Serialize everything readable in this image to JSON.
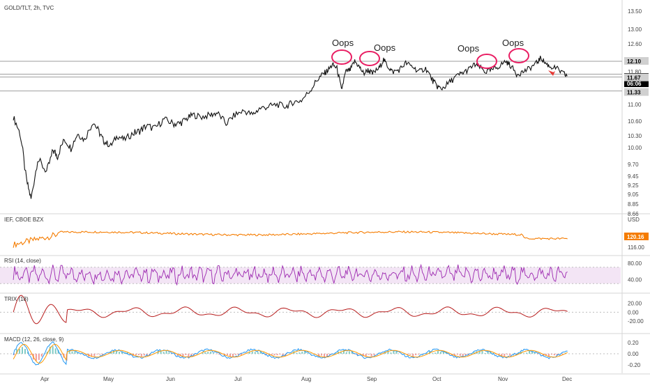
{
  "chart_data": {
    "type": "line",
    "header": "GOLD/TLT, 2h, TVC",
    "months": [
      "Apr",
      "May",
      "Jun",
      "Jul",
      "Aug",
      "Sep",
      "Oct",
      "Nov",
      "Dec"
    ],
    "main": {
      "ticks": [
        "13.50",
        "13.00",
        "12.60",
        "12.10",
        "11.80",
        "11.00",
        "10.60",
        "10.30",
        "10.00",
        "9.70",
        "9.45",
        "9.25",
        "9.05",
        "8.85",
        "8.66"
      ],
      "ylim": [
        8.66,
        13.5
      ],
      "price_badge": "11.69",
      "countdown_badge": "06:06",
      "level_badges": [
        "12.10",
        "11.67",
        "11.33"
      ],
      "levels": [
        12.1,
        11.67,
        11.33
      ],
      "series": [
        {
          "x": 0.0,
          "y": 10.7
        },
        {
          "x": 0.15,
          "y": 10.35
        },
        {
          "x": 0.3,
          "y": 9.35
        },
        {
          "x": 0.4,
          "y": 8.95
        },
        {
          "x": 0.55,
          "y": 9.8
        },
        {
          "x": 0.75,
          "y": 9.55
        },
        {
          "x": 0.9,
          "y": 9.95
        },
        {
          "x": 1.0,
          "y": 9.85
        },
        {
          "x": 1.15,
          "y": 10.2
        },
        {
          "x": 1.3,
          "y": 10.0
        },
        {
          "x": 1.45,
          "y": 10.35
        },
        {
          "x": 1.6,
          "y": 10.2
        },
        {
          "x": 1.8,
          "y": 10.6
        },
        {
          "x": 1.95,
          "y": 10.35
        },
        {
          "x": 2.05,
          "y": 10.15
        },
        {
          "x": 2.2,
          "y": 10.05
        },
        {
          "x": 2.35,
          "y": 10.3
        },
        {
          "x": 2.5,
          "y": 10.2
        },
        {
          "x": 2.7,
          "y": 10.35
        },
        {
          "x": 2.85,
          "y": 10.4
        },
        {
          "x": 3.0,
          "y": 10.5
        },
        {
          "x": 3.2,
          "y": 10.45
        },
        {
          "x": 3.4,
          "y": 10.65
        },
        {
          "x": 3.6,
          "y": 10.55
        },
        {
          "x": 3.75,
          "y": 10.55
        },
        {
          "x": 3.9,
          "y": 10.65
        },
        {
          "x": 4.05,
          "y": 10.75
        },
        {
          "x": 4.25,
          "y": 10.7
        },
        {
          "x": 4.45,
          "y": 10.75
        },
        {
          "x": 4.6,
          "y": 10.8
        },
        {
          "x": 4.8,
          "y": 10.55
        },
        {
          "x": 5.0,
          "y": 10.75
        },
        {
          "x": 5.2,
          "y": 10.85
        },
        {
          "x": 5.4,
          "y": 10.75
        },
        {
          "x": 5.55,
          "y": 10.9
        },
        {
          "x": 5.75,
          "y": 10.95
        },
        {
          "x": 5.95,
          "y": 11.0
        },
        {
          "x": 6.15,
          "y": 10.95
        },
        {
          "x": 6.3,
          "y": 11.05
        },
        {
          "x": 6.5,
          "y": 11.1
        },
        {
          "x": 6.7,
          "y": 11.35
        },
        {
          "x": 6.85,
          "y": 11.6
        },
        {
          "x": 7.0,
          "y": 11.75
        },
        {
          "x": 7.1,
          "y": 11.85
        },
        {
          "x": 7.2,
          "y": 12.0
        },
        {
          "x": 7.3,
          "y": 11.9
        },
        {
          "x": 7.4,
          "y": 11.35
        },
        {
          "x": 7.5,
          "y": 11.8
        },
        {
          "x": 7.6,
          "y": 11.85
        },
        {
          "x": 7.7,
          "y": 12.1
        },
        {
          "x": 7.8,
          "y": 11.95
        },
        {
          "x": 7.9,
          "y": 11.75
        },
        {
          "x": 8.0,
          "y": 11.85
        },
        {
          "x": 8.1,
          "y": 11.75
        },
        {
          "x": 8.25,
          "y": 11.9
        },
        {
          "x": 8.35,
          "y": 12.15
        },
        {
          "x": 8.45,
          "y": 11.95
        },
        {
          "x": 8.55,
          "y": 11.8
        },
        {
          "x": 8.7,
          "y": 11.85
        },
        {
          "x": 8.85,
          "y": 12.05
        },
        {
          "x": 9.0,
          "y": 11.95
        },
        {
          "x": 9.15,
          "y": 11.8
        },
        {
          "x": 9.3,
          "y": 11.9
        },
        {
          "x": 9.45,
          "y": 11.6
        },
        {
          "x": 9.55,
          "y": 11.45
        },
        {
          "x": 9.65,
          "y": 11.38
        },
        {
          "x": 9.8,
          "y": 11.5
        },
        {
          "x": 9.95,
          "y": 11.65
        },
        {
          "x": 10.1,
          "y": 11.75
        },
        {
          "x": 10.25,
          "y": 11.85
        },
        {
          "x": 10.4,
          "y": 12.0
        },
        {
          "x": 10.5,
          "y": 11.95
        },
        {
          "x": 10.65,
          "y": 11.8
        },
        {
          "x": 10.8,
          "y": 11.85
        },
        {
          "x": 10.95,
          "y": 11.95
        },
        {
          "x": 11.1,
          "y": 12.1
        },
        {
          "x": 11.2,
          "y": 12.0
        },
        {
          "x": 11.35,
          "y": 11.75
        },
        {
          "x": 11.5,
          "y": 11.8
        },
        {
          "x": 11.65,
          "y": 11.9
        },
        {
          "x": 11.8,
          "y": 12.05
        },
        {
          "x": 11.9,
          "y": 12.2
        },
        {
          "x": 12.0,
          "y": 12.05
        },
        {
          "x": 12.1,
          "y": 11.95
        },
        {
          "x": 12.25,
          "y": 11.9
        },
        {
          "x": 12.4,
          "y": 11.75
        },
        {
          "x": 12.5,
          "y": 11.7
        }
      ]
    },
    "ief": {
      "label": "IEF, CBOE BZX",
      "unit": "USD",
      "ticks": [
        "120.16",
        "116.00"
      ],
      "badge": "120.16",
      "ylim": [
        114,
        128
      ]
    },
    "rsi": {
      "label": "RSI (14, close)",
      "ticks": [
        "80.00",
        "40.00"
      ],
      "band": [
        30,
        70
      ],
      "ylim": [
        15,
        90
      ]
    },
    "trix": {
      "label": "TRIX (18)",
      "ticks": [
        "20.00",
        "0.00",
        "-20.00"
      ],
      "ylim": [
        -40,
        35
      ]
    },
    "macd": {
      "label": "MACD (12, 26, close, 9)",
      "ticks": [
        "0.20",
        "0.00",
        "-0.20"
      ],
      "ylim": [
        -0.3,
        0.3
      ]
    },
    "annotations": [
      {
        "text": "Oops",
        "x": 7.78,
        "y": 12.18
      },
      {
        "text": "Oops",
        "x": 8.3,
        "y": 12.15
      },
      {
        "text": "Oops",
        "x": 11.2,
        "y": 12.05
      },
      {
        "text": "Oops",
        "x": 11.95,
        "y": 12.2
      }
    ],
    "colors": {
      "price": "#111111",
      "ief": "#f57c00",
      "rsi": "#9c27b0",
      "rsi_band": "#f3e5f5",
      "trix": "#b71c1c",
      "macd": "#2196f3",
      "signal": "#ff9800",
      "circle": "#e91e63",
      "arrow": "#e53935",
      "badge_dark": "#000000",
      "badge_gray": "#d0d0d0"
    }
  }
}
